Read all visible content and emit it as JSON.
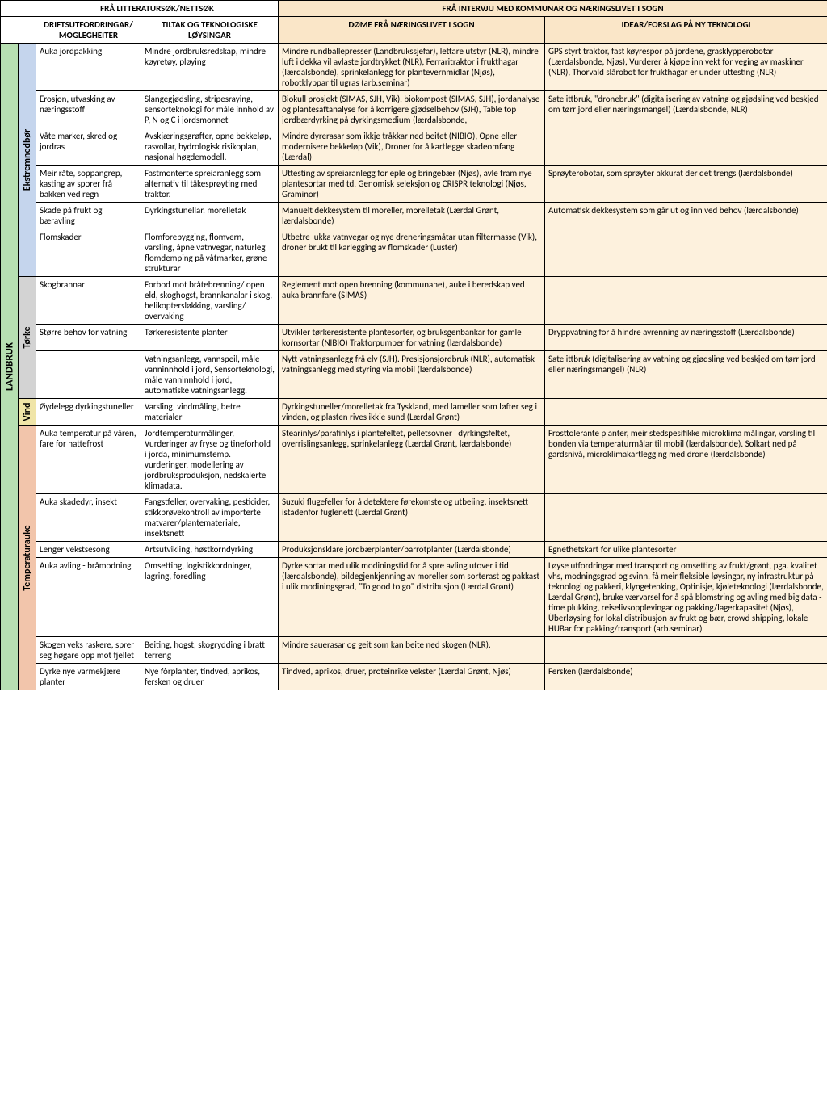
{
  "headers": {
    "lit": "FRÅ LITTERATURSØK/NETTSØK",
    "int": "FRÅ INTERVJU MED KOMMUNAR OG NÆRINGSLIVET I SOGN",
    "c1": "DRIFTSUTFORDRINGAR/ MOGLEGHEITER",
    "c2": "TILTAK OG TEKNOLOGISKE LØYSINGAR",
    "c3": "DØME FRÅ NÆRINGSLIVET I SOGN",
    "c4": "IDEAR/FORSLAG PÅ NY TEKNOLOGI"
  },
  "section": "LANDBRUK",
  "groups": [
    {
      "name": "Ekstremnedbør",
      "bg": "ekstrem-bg",
      "rows": [
        {
          "a": "Auka jordpakking",
          "b": "Mindre jordbruksredskap, mindre køyretøy, pløying",
          "c": "Mindre rundballepresser (Landbrukssjefar), lettare utstyr (NLR), mindre luft i dekka vil avlaste jordtrykket (NLR), Ferraritraktor i frukthagar (lærdalsbonde), sprinkelanlegg for plantevernmidlar (Njøs), robotklyppar til ugras (arb.seminar)",
          "d": "GPS styrt traktor, fast køyrespor på jordene, grasklypperobotar (Lærdalsbonde, Njøs), Vurderer å kjøpe inn vekt for veging av maskiner (NLR), Thorvald slårobot for frukthagar er under uttesting (NLR)"
        },
        {
          "a": "Erosjon, utvasking av næringsstoff",
          "b": "Slangegjødsling, stripesraying, sensorteknologi for måle innhold av P, N og C i jordsmonnet",
          "c": "Biokull prosjekt (SIMAS, SJH, Vik), biokompost (SIMAS, SJH), jordanalyse og plantesaftanalyse for å korrigere gjødselbehov (SJH), Table top jordbærdyrking på dyrkingsmedium (lærdalsbonde,",
          "d": "Satelittbruk, \"dronebruk\" (digitalisering av vatning og gjødsling ved beskjed om tørr jord eller næringsmangel) (Lærdalsbonde, NLR)"
        },
        {
          "a": "Våte marker, skred og jordras",
          "b": "Avskjæringsgrøfter, opne bekkeløp, rasvollar, hydrologisk risikoplan, nasjonal høgdemodell.",
          "c": "Mindre dyrerasar som ikkje tråkkar ned beitet (NIBIO), Opne eller modernisere bekkeløp (Vik), Droner for å kartlegge skadeomfang (Lærdal)",
          "d": ""
        },
        {
          "a": "Meir råte, soppangrep, kasting av sporer frå bakken ved regn",
          "b": "Fastmonterte spreiaranlegg som alternativ til tåkesprøyting med traktor.",
          "c": "Uttesting av spreiaranlegg for eple og bringebær (Njøs), avle fram nye plantesortar med td. Genomisk seleksjon og CRISPR teknologi (Njøs, Graminor)",
          "d": "Sprøyterobotar, som sprøyter akkurat der det trengs (lærdalsbonde)"
        },
        {
          "a": "Skade på frukt og bæravling",
          "b": "Dyrkingstunellar, morelletak",
          "c": "Manuelt dekkesystem til moreller, morelletak (Lærdal Grønt, lærdalsbonde)",
          "d": "Automatisk dekkesystem som går ut og inn ved behov (lærdalsbonde)"
        },
        {
          "a": "Flomskader",
          "b": "Flomforebygging, flomvern, varsling, åpne vatnvegar, naturleg flomdemping på våtmarker, grøne strukturar",
          "c": "Utbetre lukka vatnvegar og nye dreneringsmåtar utan filtermasse (Vik), droner brukt til karlegging av flomskader (Luster)",
          "d": ""
        }
      ]
    },
    {
      "name": "Tørke",
      "bg": "torke-bg",
      "rows": [
        {
          "a": "Skogbrannar",
          "b": "Forbod mot bråtebrenning/ open eld, skoghogst, brannkanalar i skog, helikoptersløkking, varsling/ overvaking",
          "c": "Reglement mot open brenning (kommunane), auke i beredskap ved auka brannfare (SIMAS)",
          "d": ""
        },
        {
          "a": "Større behov for vatning",
          "b": "Tørkeresistente planter",
          "c": "Utvikler tørkeresistente plantesorter, og bruksgenbankar for gamle kornsortar (NIBIO) Traktorpumper for vatning (lærdalsbonde)",
          "d": "Dryppvatning for å hindre avrenning av næringsstoff (Lærdalsbonde)"
        },
        {
          "a": "",
          "b": "Vatningsanlegg, vannspeil, måle vanninnhold i jord, Sensorteknologi, måle vanninnhold i jord, automatiske vatningsanlegg.",
          "c": "Nytt vatningsanlegg frå elv (SJH). Presisjonsjordbruk (NLR), automatisk vatningsanlegg med styring via mobil (lærdalsbonde)",
          "d": "Satelittbruk (digitalisering av vatning og gjødsling ved beskjed om tørr jord eller næringsmangel) (NLR)"
        }
      ]
    },
    {
      "name": "Vind",
      "bg": "vind-bg",
      "rows": [
        {
          "a": "Øydelegg dyrkingstuneller",
          "b": "Varsling, vindmåling, betre materialer",
          "c": "Dyrkingstuneller/morelletak fra Tyskland, med lameller som løfter seg i vinden, og plasten rives ikkje sund (Lærdal Grønt)",
          "d": ""
        }
      ]
    },
    {
      "name": "Temperaturauke",
      "bg": "temp-bg",
      "rows": [
        {
          "a": "Auka temperatur på våren, fare for nattefrost",
          "b": "Jordtemperaturmålinger, Vurderinger av fryse og tineforhold i jorda, minimumstemp. vurderinger, modellering av jordbruksproduksjon, nedskalerte klimadata.",
          "c": "Stearinlys/parafinlys i plantefeltet, pelletsovner i dyrkingsfeltet, overrislingsanlegg, sprinkelanlegg (Lærdal Grønt, lærdalsbonde)",
          "d": "Frosttolerante planter, meir stedspesifikke microklima målingar, varsling til bonden via temperaturmålar til mobil (lærdalsbonde). Solkart ned på gardsnivå, microklimakartlegging med drone (lærdalsbonde)"
        },
        {
          "a": "Auka skadedyr, insekt",
          "b": "Fangstfeller, overvaking, pesticider, stikkprøvekontroll av importerte matvarer/plantemateriale, insektsnett",
          "c": "Suzuki flugefeller for å detektere førekomste og utbeiing, insektsnett istadenfor fuglenett (Lærdal Grønt)",
          "d": ""
        },
        {
          "a": "Lenger vekstsesong",
          "b": "Artsutvikling, høstkorndyrking",
          "c": "Produksjonsklare jordbærplanter/barrotplanter (Lærdalsbonde)",
          "d": "Egnethetskart for ulike plantesorter"
        },
        {
          "a": "Auka avling - bråmodning",
          "b": "Omsetting, logistikkordninger, lagring, foredling",
          "c": "Dyrke sortar med ulik modiningstid for å spre avling utover i tid (lærdalsbonde), bildegjenkjenning av moreller som sorterast og pakkast i ulik modiningsgrad, \"To good to go\" distribusjon (Lærdal Grønt)",
          "d": "Løyse utfordringar med transport og omsetting av frukt/grønt, pga. kvalitet vhs, modningsgrad og svinn, få meir fleksible løysingar, ny infrastruktur på teknologi og pakkeri, klyngetenking, Optinisje, kjøleteknologi (lærdalsbonde, Lærdal Grønt), bruke værvarsel for å spå blomstring og avling med big data - time plukking, reiselivsopplevingar og pakking/lagerkapasitet (Njøs), Überløysing for lokal distribusjon av frukt og bær, crowd shipping, lokale HUBar for pakking/transport (arb.seminar)"
        },
        {
          "a": "Skogen veks raskere, sprer seg høgare opp mot fjellet",
          "b": "Beiting, hogst, skogrydding i bratt terreng",
          "c": "Mindre sauerasar og geit som kan beite ned skogen (NLR).",
          "d": ""
        },
        {
          "a": "Dyrke nye varmekjære planter",
          "b": " Nye fôrplanter, tindved, aprikos, fersken og druer",
          "c": "Tindved, aprikos, druer, proteinrike vekster (Lærdal Grønt, Njøs)",
          "d": "Fersken (lærdalsbonde)"
        }
      ]
    }
  ]
}
